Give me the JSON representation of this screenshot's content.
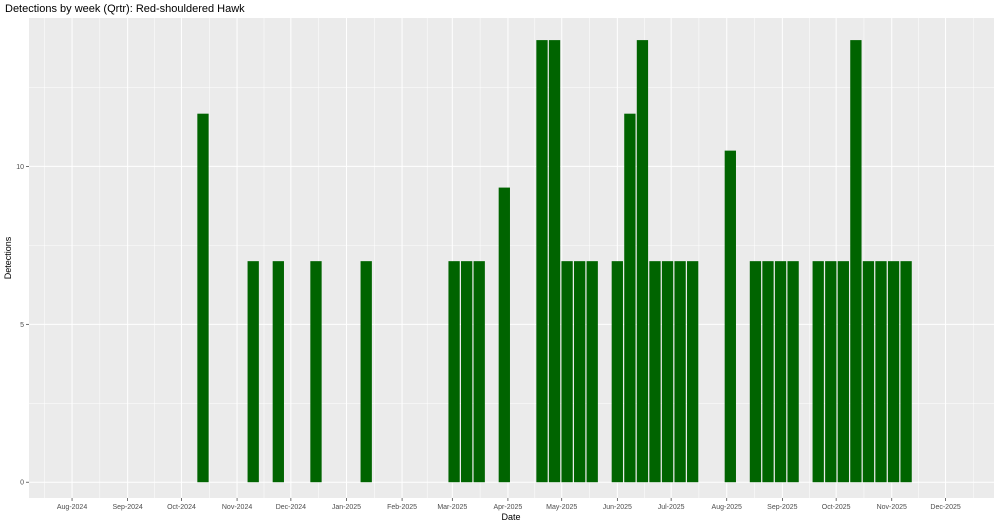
{
  "chart_data": {
    "type": "bar",
    "title": "Detections by week (Qrtr): Red-shouldered Hawk",
    "xlabel": "Date",
    "ylabel": "Detections",
    "ylim": [
      -0.5,
      14.7
    ],
    "y_ticks": [
      0,
      5,
      10
    ],
    "x_range": [
      "2024-07-08",
      "2025-12-28"
    ],
    "x_ticks": [
      {
        "date": "2024-08-01",
        "label": "Aug-2024"
      },
      {
        "date": "2024-09-01",
        "label": "Sep-2024"
      },
      {
        "date": "2024-10-01",
        "label": "Oct-2024"
      },
      {
        "date": "2024-11-01",
        "label": "Nov-2024"
      },
      {
        "date": "2024-12-01",
        "label": "Dec-2024"
      },
      {
        "date": "2025-01-01",
        "label": "Jan-2025"
      },
      {
        "date": "2025-02-01",
        "label": "Feb-2025"
      },
      {
        "date": "2025-03-01",
        "label": "Mar-2025"
      },
      {
        "date": "2025-04-01",
        "label": "Apr-2025"
      },
      {
        "date": "2025-05-01",
        "label": "May-2025"
      },
      {
        "date": "2025-06-01",
        "label": "Jun-2025"
      },
      {
        "date": "2025-07-01",
        "label": "Jul-2025"
      },
      {
        "date": "2025-08-01",
        "label": "Aug-2025"
      },
      {
        "date": "2025-09-01",
        "label": "Sep-2025"
      },
      {
        "date": "2025-10-01",
        "label": "Oct-2025"
      },
      {
        "date": "2025-11-01",
        "label": "Nov-2025"
      },
      {
        "date": "2025-12-01",
        "label": "Dec-2025"
      }
    ],
    "grid": true,
    "bar_color": "#006400",
    "panel_color": "#ebebeb",
    "grid_color": "#ffffff",
    "bars": [
      {
        "x": "2024-10-13",
        "y": 11.67
      },
      {
        "x": "2024-11-10",
        "y": 7
      },
      {
        "x": "2024-11-24",
        "y": 7
      },
      {
        "x": "2024-12-15",
        "y": 7
      },
      {
        "x": "2025-01-12",
        "y": 7
      },
      {
        "x": "2025-03-02",
        "y": 7
      },
      {
        "x": "2025-03-09",
        "y": 7
      },
      {
        "x": "2025-03-16",
        "y": 7
      },
      {
        "x": "2025-03-30",
        "y": 9.33
      },
      {
        "x": "2025-04-20",
        "y": 14
      },
      {
        "x": "2025-04-27",
        "y": 14
      },
      {
        "x": "2025-05-04",
        "y": 7
      },
      {
        "x": "2025-05-11",
        "y": 7
      },
      {
        "x": "2025-05-18",
        "y": 7
      },
      {
        "x": "2025-06-01",
        "y": 7
      },
      {
        "x": "2025-06-08",
        "y": 11.67
      },
      {
        "x": "2025-06-15",
        "y": 14
      },
      {
        "x": "2025-06-22",
        "y": 7
      },
      {
        "x": "2025-06-29",
        "y": 7
      },
      {
        "x": "2025-07-06",
        "y": 7
      },
      {
        "x": "2025-07-13",
        "y": 7
      },
      {
        "x": "2025-08-03",
        "y": 10.5
      },
      {
        "x": "2025-08-17",
        "y": 7
      },
      {
        "x": "2025-08-24",
        "y": 7
      },
      {
        "x": "2025-08-31",
        "y": 7
      },
      {
        "x": "2025-09-07",
        "y": 7
      },
      {
        "x": "2025-09-21",
        "y": 7
      },
      {
        "x": "2025-09-28",
        "y": 7
      },
      {
        "x": "2025-10-05",
        "y": 7
      },
      {
        "x": "2025-10-12",
        "y": 14
      },
      {
        "x": "2025-10-19",
        "y": 7
      },
      {
        "x": "2025-10-26",
        "y": 7
      },
      {
        "x": "2025-11-02",
        "y": 7
      },
      {
        "x": "2025-11-09",
        "y": 7
      }
    ]
  }
}
